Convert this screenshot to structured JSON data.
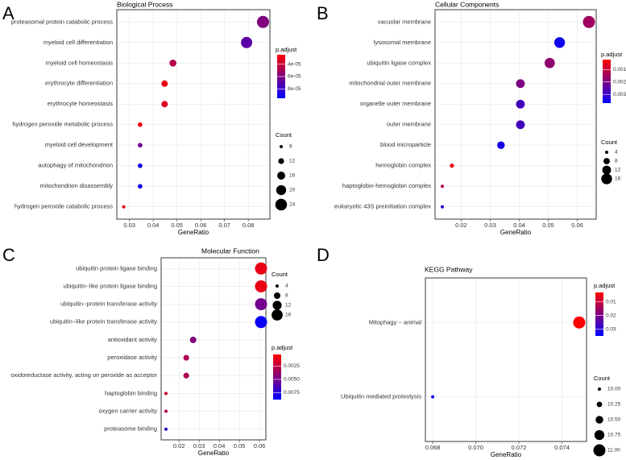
{
  "chart_data": [
    {
      "type": "scatter",
      "panel_label": "A",
      "title": "Biological Process",
      "xlabel": "GeneRatio",
      "categories": [
        "proteasomal protein catabolic process",
        "myeloid cell differentiation",
        "myeloid cell homeostasis",
        "erythrocyte differentiation",
        "erythrocyte homeostasis",
        "hydrogen peroxide metabolic process",
        "myeloid cell development",
        "autophagy of mitochondrion",
        "mitochondrion disassembly",
        "hydrogen peroxide catabolic process"
      ],
      "values": [
        0.0862,
        0.0793,
        0.0483,
        0.0448,
        0.0448,
        0.0345,
        0.0345,
        0.0345,
        0.0345,
        0.0276
      ],
      "count": [
        25,
        23,
        14,
        13,
        13,
        10,
        10,
        10,
        10,
        8
      ],
      "p_adjust": [
        6e-05,
        7e-05,
        4.5e-05,
        3e-05,
        3.5e-05,
        3e-05,
        6.5e-05,
        9e-05,
        9e-05,
        3e-05
      ],
      "xlim": [
        0.0247,
        0.0891
      ],
      "xticks": [
        0.03,
        0.04,
        0.05,
        0.06,
        0.07,
        0.08
      ],
      "color_legend": {
        "title": "p.adjust",
        "lim": [
          2.5e-05,
          9.5e-05
        ],
        "low": "#ff0000",
        "high": "#0000ff",
        "ticks": [
          {
            "value": 4e-05,
            "label": "4e-05"
          },
          {
            "value": 6e-05,
            "label": "6e-05"
          },
          {
            "value": 8e-05,
            "label": "8e-05"
          }
        ]
      },
      "size_legend": {
        "title": "Count",
        "ticks": [
          8,
          12,
          16,
          20,
          24
        ]
      }
    },
    {
      "type": "scatter",
      "panel_label": "B",
      "title": "Cellular Components",
      "xlabel": "GeneRatio",
      "categories": [
        "vacuolar membrane",
        "lysosomal membrane",
        "ubiquitin ligase complex",
        "mitochondrial outer membrane",
        "organelle outer membrane",
        "outer membrane",
        "blood microparticle",
        "hemoglobin complex",
        "haptoglobin-hemoglobin complex",
        "eukaryotic 43S preinitiation complex"
      ],
      "values": [
        0.064,
        0.0539,
        0.0505,
        0.0404,
        0.0404,
        0.0404,
        0.0337,
        0.0168,
        0.0135,
        0.0135
      ],
      "count": [
        19,
        16,
        15,
        12,
        12,
        12,
        10,
        5,
        4,
        4
      ],
      "p_adjust": [
        0.0015,
        0.0035,
        0.0017,
        0.002,
        0.0028,
        0.0028,
        0.0034,
        0.0004,
        0.0013,
        0.0032
      ],
      "xlim": [
        0.011,
        0.0665
      ],
      "xticks": [
        0.02,
        0.03,
        0.04,
        0.05,
        0.06
      ],
      "color_legend": {
        "title": "p.adjust",
        "lim": [
          0.0002,
          0.0037
        ],
        "low": "#ff0000",
        "high": "#0000ff",
        "ticks": [
          0.001,
          0.002,
          0.003
        ]
      },
      "size_legend": {
        "title": "Count",
        "ticks": [
          4,
          8,
          12,
          16
        ]
      }
    },
    {
      "type": "scatter",
      "panel_label": "C",
      "title": "Molecular Function",
      "xlabel": "GeneRatio",
      "categories": [
        "ubiquitin protein ligase binding",
        "ubiquitin−like protein ligase binding",
        "ubiquitin−protein transferase activity",
        "ubiquitin−like protein transferase activity",
        "antioxidant activity",
        "peroxidase activity",
        "oxidoreductase activity, acting on peroxide as acceptor",
        "haptoglobin binding",
        "oxygen carrier activity",
        "proteasome binding"
      ],
      "values": [
        0.0608,
        0.0608,
        0.0608,
        0.0608,
        0.027,
        0.0236,
        0.0236,
        0.0135,
        0.0135,
        0.0135
      ],
      "count": [
        18,
        18,
        18,
        18,
        8,
        7,
        7,
        4,
        4,
        4
      ],
      "p_adjust": [
        0.001,
        0.001,
        0.005,
        0.0085,
        0.0045,
        0.003,
        0.003,
        0.002,
        0.003,
        0.007
      ],
      "xlim": [
        0.0111,
        0.0632
      ],
      "xticks": [
        0.02,
        0.03,
        0.04,
        0.05,
        0.06
      ],
      "color_legend": {
        "title": "p.adjust",
        "lim": [
          0.0003,
          0.0088
        ],
        "low": "#ff0000",
        "high": "#0000ff",
        "ticks": [
          0.0025,
          {
            "value": 0.005,
            "label": "0.0050"
          },
          0.0075
        ]
      },
      "size_legend": {
        "title": "Count",
        "ticks": [
          4,
          8,
          12,
          16
        ]
      }
    },
    {
      "type": "scatter",
      "panel_label": "D",
      "title": "KEGG Pathway",
      "xlabel": "GeneRatio",
      "categories": [
        "Mitophagy − animal",
        "Ubiquitin mediated proteolysis"
      ],
      "values": [
        0.0748,
        0.068
      ],
      "count": [
        11,
        10
      ],
      "p_adjust": [
        0.003,
        0.033
      ],
      "xlim": [
        0.06766,
        0.07514
      ],
      "xticks": [
        0.068,
        {
          "value": 0.07,
          "label": "0.070"
        },
        0.072,
        0.074
      ],
      "color_legend": {
        "title": "p.adjust",
        "lim": [
          0.003,
          0.035
        ],
        "low": "#ff0000",
        "high": "#0000ff",
        "ticks": [
          0.01,
          0.02,
          0.03
        ]
      },
      "size_legend": {
        "title": "Count",
        "ticks": [
          {
            "value": 10,
            "label": "10.00"
          },
          {
            "value": 10.25,
            "label": "10.25"
          },
          {
            "value": 10.5,
            "label": "10.50"
          },
          {
            "value": 10.75,
            "label": "10.75"
          },
          {
            "value": 11,
            "label": "11.00"
          }
        ]
      }
    }
  ]
}
